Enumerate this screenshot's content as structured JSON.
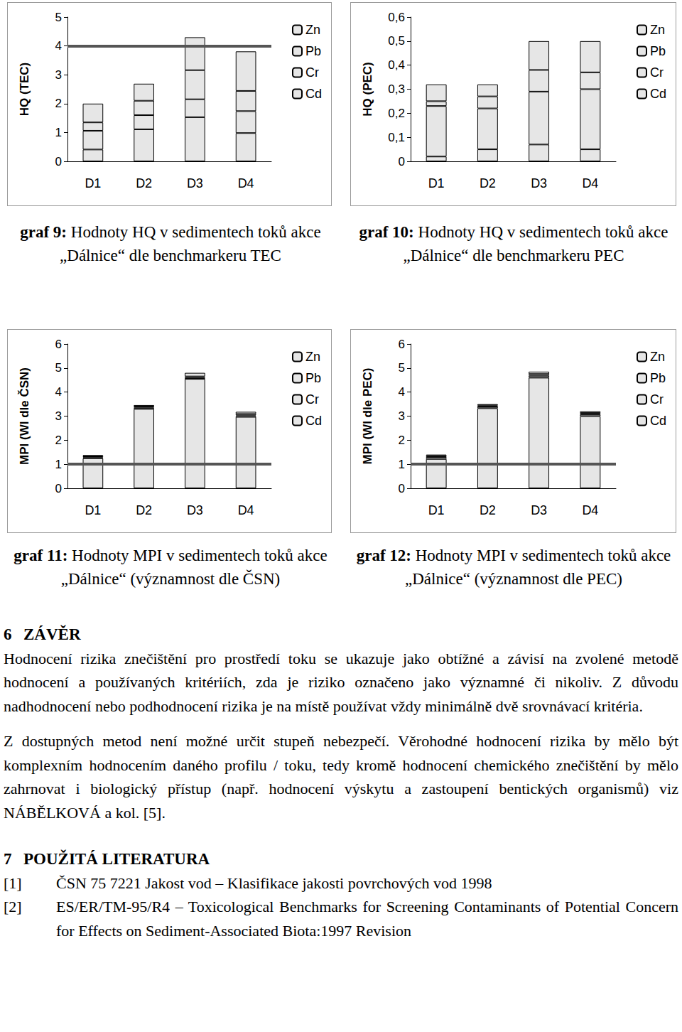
{
  "chart_data": [
    {
      "type": "bar",
      "stacked": true,
      "grid": false,
      "legend": "right",
      "title": "graf 9: Hodnoty HQ v sedimentech toků akce „Dálnice“ dle benchmarkeru TEC",
      "ylabel": "HQ (TEC)",
      "categories": [
        "D1",
        "D2",
        "D3",
        "D4"
      ],
      "series": [
        {
          "name": "Cd",
          "color": "#e6e6e6",
          "values": [
            0.41,
            1.11,
            1.53,
            0.98
          ]
        },
        {
          "name": "Cr",
          "color": "#e6e6e6",
          "values": [
            0.65,
            0.49,
            0.62,
            0.76
          ]
        },
        {
          "name": "Pb",
          "color": "#e6e6e6",
          "values": [
            0.29,
            0.5,
            1.01,
            0.7
          ]
        },
        {
          "name": "Zn",
          "color": "#e6e6e6",
          "values": [
            0.65,
            0.59,
            1.14,
            1.37
          ]
        }
      ],
      "threshold": 4,
      "ylim": [
        0,
        5
      ],
      "yticks": [
        0,
        1,
        2,
        3,
        4,
        5
      ]
    },
    {
      "type": "bar",
      "stacked": true,
      "grid": false,
      "legend": "right",
      "title": "graf 10: Hodnoty HQ v sedimentech toků akce „Dálnice“ dle benchmarkeru PEC",
      "ylabel": "HQ (PEC)",
      "categories": [
        "D1",
        "D2",
        "D3",
        "D4"
      ],
      "series": [
        {
          "name": "Cd",
          "color": "#e6e6e6",
          "values": [
            0.02,
            0.05,
            0.07,
            0.05
          ]
        },
        {
          "name": "Cr",
          "color": "#e6e6e6",
          "values": [
            0.21,
            0.17,
            0.22,
            0.25
          ]
        },
        {
          "name": "Pb",
          "color": "#e6e6e6",
          "values": [
            0.02,
            0.05,
            0.09,
            0.07
          ]
        },
        {
          "name": "Zn",
          "color": "#e6e6e6",
          "values": [
            0.07,
            0.05,
            0.12,
            0.13
          ]
        }
      ],
      "ylim": [
        0,
        0.6
      ],
      "yticks": [
        {
          "value": 0,
          "label": "0"
        },
        {
          "value": 0.1,
          "label": "0,1"
        },
        {
          "value": 0.2,
          "label": "0,2"
        },
        {
          "value": 0.3,
          "label": "0,3"
        },
        {
          "value": 0.4,
          "label": "0,4"
        },
        {
          "value": 0.5,
          "label": "0,5"
        },
        {
          "value": 0.6,
          "label": "0,6"
        }
      ]
    },
    {
      "type": "bar",
      "stacked": true,
      "grid": false,
      "legend": "right",
      "title": "graf 11: Hodnoty MPI v sedimentech toků akce „Dálnice“ (významnost dle ČSN)",
      "ylabel": "MPI (WI dle ČSN)",
      "categories": [
        "D1",
        "D2",
        "D3",
        "D4"
      ],
      "series": [
        {
          "name": "Cd",
          "color": "#e6e6e6",
          "values": [
            1.25,
            3.3,
            4.55,
            2.97
          ]
        },
        {
          "name": "Cr",
          "color": "#e6e6e6",
          "values": [
            0.03,
            0.05,
            0.05,
            0.06
          ]
        },
        {
          "name": "Pb",
          "color": "#e6e6e6",
          "values": [
            0.05,
            0.05,
            0.05,
            0.06
          ]
        },
        {
          "name": "Zn",
          "color": "#e6e6e6",
          "values": [
            0.05,
            0.06,
            0.15,
            0.09
          ]
        }
      ],
      "threshold": 1,
      "ylim": [
        0,
        6
      ],
      "yticks": [
        0,
        1,
        2,
        3,
        4,
        5,
        6
      ]
    },
    {
      "type": "bar",
      "stacked": true,
      "grid": false,
      "legend": "right",
      "title": "graf 12: Hodnoty MPI v sedimentech toků akce „Dálnice“ (významnost dle PEC)",
      "ylabel": "MPI (WI dle PEC)",
      "categories": [
        "D1",
        "D2",
        "D3",
        "D4"
      ],
      "series": [
        {
          "name": "Cd",
          "color": "#e6e6e6",
          "values": [
            1.22,
            3.33,
            4.6,
            3.0
          ]
        },
        {
          "name": "Cr",
          "color": "#e6e6e6",
          "values": [
            0.08,
            0.07,
            0.08,
            0.07
          ]
        },
        {
          "name": "Pb",
          "color": "#e6e6e6",
          "values": [
            0.05,
            0.05,
            0.07,
            0.06
          ]
        },
        {
          "name": "Zn",
          "color": "#e6e6e6",
          "values": [
            0.05,
            0.05,
            0.1,
            0.07
          ]
        }
      ],
      "threshold": 1,
      "ylim": [
        0,
        6
      ],
      "yticks": [
        0,
        1,
        2,
        3,
        4,
        5,
        6
      ]
    }
  ],
  "document": {
    "section": {
      "number": "6",
      "title": "ZÁVĚR"
    },
    "paragraphs": [
      "Hodnocení rizika znečištění pro prostředí toku se ukazuje jako obtížné a závisí na zvolené metodě hodnocení a používaných kritériích, zda je riziko označeno jako významné či nikoliv. Z důvodu nadhodnocení nebo podhodnocení rizika je na místě používat vždy minimálně dvě srovnávací kritéria.",
      "Z dostupných metod není možné určit stupeň nebezpečí. Věrohodné hodnocení rizika by mělo být komplexním hodnocením daného profilu / toku, tedy kromě hodnocení chemického znečištění by mělo zahrnovat i biologický přístup (např. hodnocení výskytu a zastoupení bentických organismů) viz NÁBĚLKOVÁ a kol. [5]."
    ],
    "references_heading": {
      "number": "7",
      "title": "POUŽITÁ LITERATURA"
    },
    "references": [
      {
        "label": "[1]",
        "text": "ČSN 75 7221 Jakost vod – Klasifikace jakosti povrchových vod 1998"
      },
      {
        "label": "[2]",
        "text": "ES/ER/TM-95/R4 – Toxicological Benchmarks for Screening Contaminants of Potential Concern for Effects on Sediment-Associated Biota:1997 Revision"
      }
    ]
  }
}
